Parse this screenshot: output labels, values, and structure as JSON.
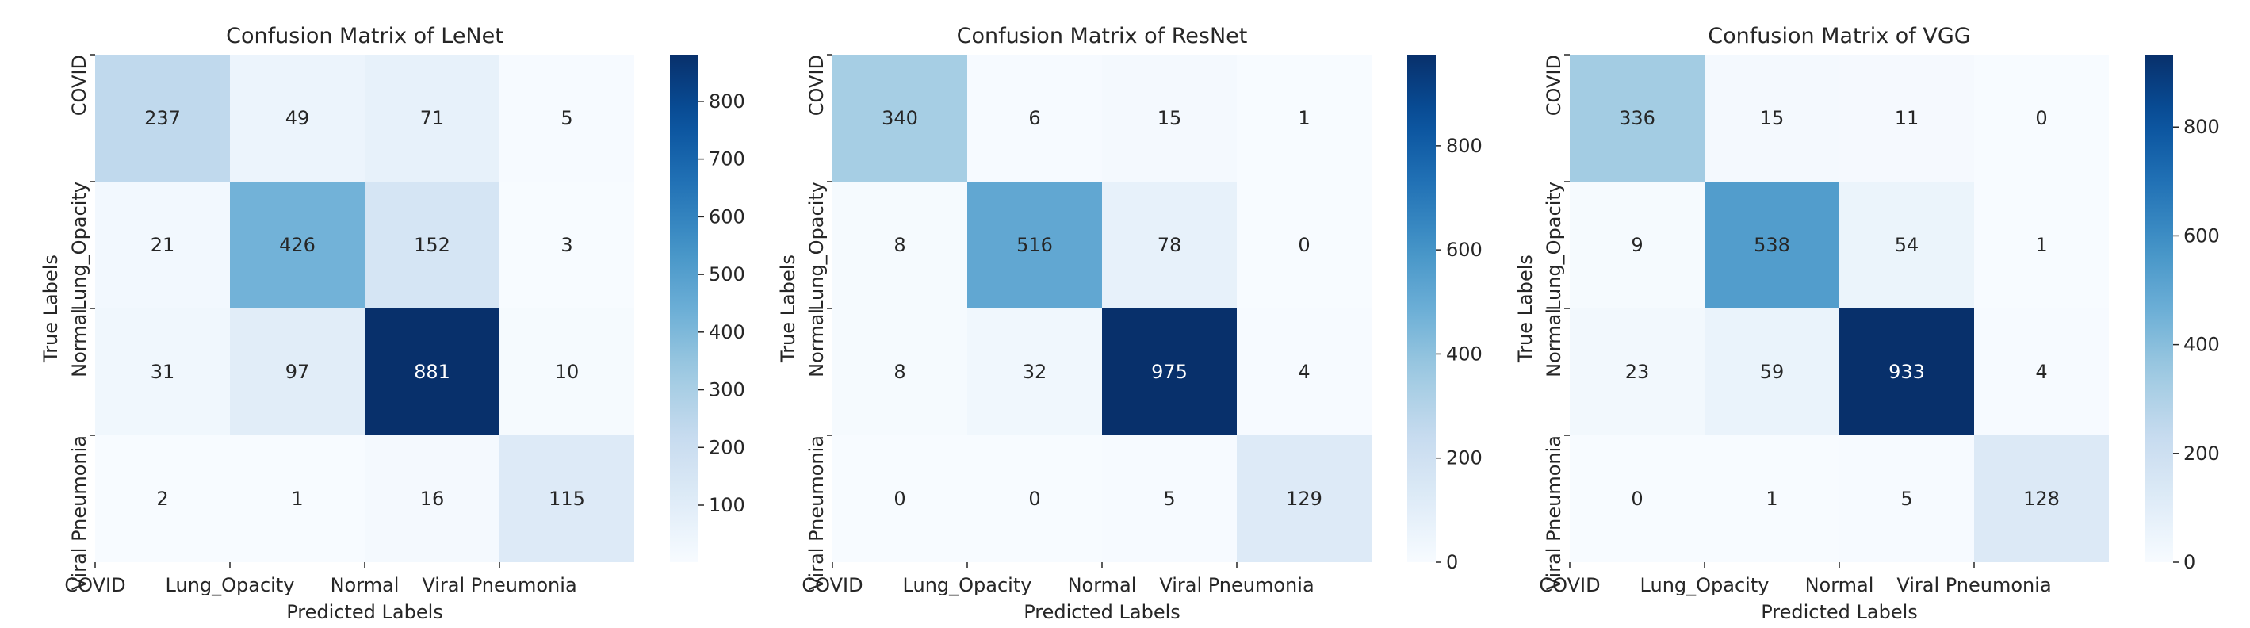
{
  "chart_data": [
    {
      "type": "heatmap",
      "title": "Confusion Matrix of LeNet",
      "xlabel": "Predicted Labels",
      "ylabel": "True Labels",
      "x_categories": [
        "COVID",
        "Lung_Opacity",
        "Normal",
        "Viral Pneumonia"
      ],
      "y_categories": [
        "COVID",
        "Lung_Opacity",
        "Normal",
        "Viral Pneumonia"
      ],
      "values": [
        [
          237,
          49,
          71,
          5
        ],
        [
          21,
          426,
          152,
          3
        ],
        [
          31,
          97,
          881,
          10
        ],
        [
          2,
          1,
          16,
          115
        ]
      ],
      "colorbar_range": [
        1,
        881
      ],
      "colorbar_ticks": [
        100,
        200,
        300,
        400,
        500,
        600,
        700,
        800
      ],
      "colormap": "Blues"
    },
    {
      "type": "heatmap",
      "title": "Confusion Matrix of ResNet",
      "xlabel": "Predicted Labels",
      "ylabel": "True Labels",
      "x_categories": [
        "COVID",
        "Lung_Opacity",
        "Normal",
        "Viral Pneumonia"
      ],
      "y_categories": [
        "COVID",
        "Lung_Opacity",
        "Normal",
        "Viral Pneumonia"
      ],
      "values": [
        [
          340,
          6,
          15,
          1
        ],
        [
          8,
          516,
          78,
          0
        ],
        [
          8,
          32,
          975,
          4
        ],
        [
          0,
          0,
          5,
          129
        ]
      ],
      "colorbar_range": [
        0,
        975
      ],
      "colorbar_ticks": [
        0,
        200,
        400,
        600,
        800
      ],
      "colormap": "Blues"
    },
    {
      "type": "heatmap",
      "title": "Confusion Matrix of VGG",
      "xlabel": "Predicted Labels",
      "ylabel": "True Labels",
      "x_categories": [
        "COVID",
        "Lung_Opacity",
        "Normal",
        "Viral Pneumonia"
      ],
      "y_categories": [
        "COVID",
        "Lung_Opacity",
        "Normal",
        "Viral Pneumonia"
      ],
      "values": [
        [
          336,
          15,
          11,
          0
        ],
        [
          9,
          538,
          54,
          1
        ],
        [
          23,
          59,
          933,
          4
        ],
        [
          0,
          1,
          5,
          128
        ]
      ],
      "colorbar_range": [
        0,
        933
      ],
      "colorbar_ticks": [
        0,
        200,
        400,
        600,
        800
      ],
      "colormap": "Blues"
    }
  ]
}
